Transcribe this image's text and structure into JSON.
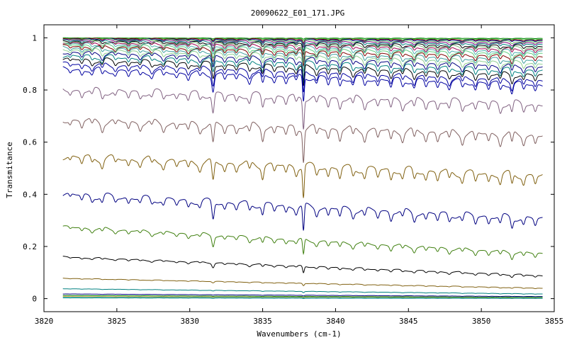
{
  "chart_data": {
    "type": "line",
    "title": "20090622_E01_171.JPG",
    "xlabel": "Wavenumbers (cm-1)",
    "ylabel": "Transmitance",
    "xlim": [
      3820,
      3855
    ],
    "ylim": [
      -0.05,
      1.05
    ],
    "xticks": [
      3820,
      3825,
      3830,
      3835,
      3840,
      3845,
      3850,
      3855
    ],
    "yticks": [
      0,
      0.2,
      0.4,
      0.6,
      0.8,
      1
    ],
    "ytick_labels": [
      "0",
      "0.2",
      "0.4",
      "0.6",
      "0.8",
      "1"
    ],
    "x_range": [
      3821.3,
      3854.2
    ],
    "legend": "none",
    "grid": false,
    "absorption_lines": [
      {
        "x": 3821.8,
        "w": 0.1,
        "a": 0.1
      },
      {
        "x": 3822.6,
        "w": 0.12,
        "a": 0.18
      },
      {
        "x": 3823.3,
        "w": 0.12,
        "a": 0.15
      },
      {
        "x": 3824.0,
        "w": 0.12,
        "a": 0.2
      },
      {
        "x": 3824.9,
        "w": 0.12,
        "a": 0.14
      },
      {
        "x": 3825.8,
        "w": 0.12,
        "a": 0.18
      },
      {
        "x": 3826.6,
        "w": 0.12,
        "a": 0.16
      },
      {
        "x": 3827.4,
        "w": 0.12,
        "a": 0.15
      },
      {
        "x": 3828.2,
        "w": 0.12,
        "a": 0.17
      },
      {
        "x": 3829.1,
        "w": 0.12,
        "a": 0.16
      },
      {
        "x": 3829.9,
        "w": 0.12,
        "a": 0.2
      },
      {
        "x": 3830.7,
        "w": 0.12,
        "a": 0.17
      },
      {
        "x": 3831.6,
        "w": 0.11,
        "a": 0.55
      },
      {
        "x": 3832.4,
        "w": 0.12,
        "a": 0.2
      },
      {
        "x": 3833.2,
        "w": 0.12,
        "a": 0.19
      },
      {
        "x": 3834.1,
        "w": 0.12,
        "a": 0.22
      },
      {
        "x": 3835.0,
        "w": 0.11,
        "a": 0.32
      },
      {
        "x": 3835.8,
        "w": 0.12,
        "a": 0.2
      },
      {
        "x": 3836.6,
        "w": 0.12,
        "a": 0.22
      },
      {
        "x": 3837.3,
        "w": 0.12,
        "a": 0.2
      },
      {
        "x": 3837.8,
        "w": 0.08,
        "a": 0.85
      },
      {
        "x": 3838.7,
        "w": 0.12,
        "a": 0.22
      },
      {
        "x": 3839.5,
        "w": 0.12,
        "a": 0.25
      },
      {
        "x": 3840.3,
        "w": 0.12,
        "a": 0.28
      },
      {
        "x": 3841.2,
        "w": 0.12,
        "a": 0.22
      },
      {
        "x": 3842.0,
        "w": 0.12,
        "a": 0.24
      },
      {
        "x": 3842.9,
        "w": 0.12,
        "a": 0.22
      },
      {
        "x": 3843.8,
        "w": 0.12,
        "a": 0.27
      },
      {
        "x": 3844.6,
        "w": 0.12,
        "a": 0.22
      },
      {
        "x": 3845.4,
        "w": 0.12,
        "a": 0.24
      },
      {
        "x": 3846.2,
        "w": 0.12,
        "a": 0.22
      },
      {
        "x": 3847.0,
        "w": 0.12,
        "a": 0.23
      },
      {
        "x": 3847.8,
        "w": 0.12,
        "a": 0.22
      },
      {
        "x": 3848.7,
        "w": 0.12,
        "a": 0.22
      },
      {
        "x": 3849.6,
        "w": 0.12,
        "a": 0.24
      },
      {
        "x": 3850.5,
        "w": 0.12,
        "a": 0.22
      },
      {
        "x": 3851.3,
        "w": 0.12,
        "a": 0.24
      },
      {
        "x": 3852.1,
        "w": 0.11,
        "a": 0.3
      },
      {
        "x": 3852.9,
        "w": 0.12,
        "a": 0.22
      },
      {
        "x": 3853.7,
        "w": 0.12,
        "a": 0.22
      }
    ],
    "series": [
      {
        "color": "#008000",
        "level_start": 1.0,
        "level_end": 0.998,
        "depth": 0.005
      },
      {
        "color": "#40c040",
        "level_start": 0.999,
        "level_end": 0.995,
        "depth": 0.01
      },
      {
        "color": "#800000",
        "level_start": 0.998,
        "level_end": 0.992,
        "depth": 0.015
      },
      {
        "color": "#000080",
        "level_start": 0.996,
        "level_end": 0.99,
        "depth": 0.02
      },
      {
        "color": "#60c060",
        "level_start": 0.995,
        "level_end": 0.985,
        "depth": 0.025
      },
      {
        "color": "#800080",
        "level_start": 0.993,
        "level_end": 0.98,
        "depth": 0.03
      },
      {
        "color": "#008080",
        "level_start": 0.99,
        "level_end": 0.975,
        "depth": 0.04
      },
      {
        "color": "#000000",
        "level_start": 0.987,
        "level_end": 0.968,
        "depth": 0.045
      },
      {
        "color": "#80c080",
        "level_start": 0.985,
        "level_end": 0.962,
        "depth": 0.05
      },
      {
        "color": "#a00050",
        "level_start": 0.982,
        "level_end": 0.955,
        "depth": 0.055
      },
      {
        "color": "#50b0b0",
        "level_start": 0.978,
        "level_end": 0.947,
        "depth": 0.06
      },
      {
        "color": "#60d080",
        "level_start": 0.973,
        "level_end": 0.938,
        "depth": 0.065
      },
      {
        "color": "#800000",
        "level_start": 0.968,
        "level_end": 0.927,
        "depth": 0.07
      },
      {
        "color": "#40a0a0",
        "level_start": 0.962,
        "level_end": 0.915,
        "depth": 0.075
      },
      {
        "color": "#90d090",
        "level_start": 0.955,
        "level_end": 0.902,
        "depth": 0.08
      },
      {
        "color": "#000080",
        "level_start": 0.945,
        "level_end": 0.888,
        "depth": 0.085
      },
      {
        "color": "#008080",
        "level_start": 0.932,
        "level_end": 0.872,
        "depth": 0.09
      },
      {
        "color": "#000000",
        "level_start": 0.918,
        "level_end": 0.855,
        "depth": 0.095
      },
      {
        "color": "#0000a0",
        "level_start": 0.9,
        "level_end": 0.834,
        "depth": 0.1
      },
      {
        "color": "#0000a0",
        "level_start": 0.88,
        "level_end": 0.82,
        "depth": 0.11
      },
      {
        "color": "#806080",
        "level_start": 0.8,
        "level_end": 0.745,
        "depth": 0.13
      },
      {
        "color": "#806060",
        "level_start": 0.685,
        "level_end": 0.625,
        "depth": 0.14
      },
      {
        "color": "#806010",
        "level_start": 0.545,
        "level_end": 0.47,
        "depth": 0.14
      },
      {
        "color": "#000080",
        "level_start": 0.4,
        "level_end": 0.305,
        "depth": 0.12
      },
      {
        "color": "#408010",
        "level_start": 0.275,
        "level_end": 0.172,
        "depth": 0.07
      },
      {
        "color": "#000000",
        "level_start": 0.16,
        "level_end": 0.088,
        "depth": 0.03
      },
      {
        "color": "#806010",
        "level_start": 0.078,
        "level_end": 0.04,
        "depth": 0.01
      },
      {
        "color": "#008080",
        "level_start": 0.038,
        "level_end": 0.018,
        "depth": 0.005
      },
      {
        "color": "#000080",
        "level_start": 0.018,
        "level_end": 0.008,
        "depth": 0.003
      },
      {
        "color": "#008000",
        "level_start": 0.012,
        "level_end": 0.005,
        "depth": 0.003
      },
      {
        "color": "#e0a040",
        "level_start": 0.008,
        "level_end": 0.003,
        "depth": 0.002
      },
      {
        "color": "#40c0c0",
        "level_start": 0.005,
        "level_end": 0.002,
        "depth": 0.002
      },
      {
        "color": "#008080",
        "level_start": 0.003,
        "level_end": 0.001,
        "depth": 0.002
      }
    ]
  }
}
